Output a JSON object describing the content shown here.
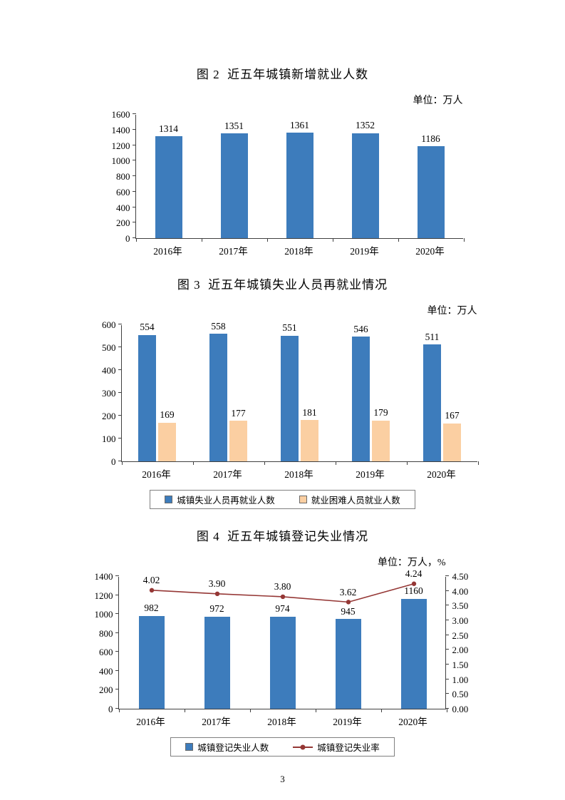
{
  "page": {
    "number": "3"
  },
  "chart_data": [
    {
      "type": "bar",
      "title": "图 2  近五年城镇新增就业人数",
      "unit_label": "单位：万人",
      "categories": [
        "2016年",
        "2017年",
        "2018年",
        "2019年",
        "2020年"
      ],
      "series": [
        {
          "kind": "bar",
          "values": [
            1314,
            1351,
            1361,
            1352,
            1186
          ],
          "color": "#3d7cbc"
        }
      ],
      "ylim": [
        0,
        1600
      ],
      "yticks": [
        "0",
        "200",
        "400",
        "600",
        "800",
        "1000",
        "1200",
        "1400",
        "1600"
      ],
      "legend_position": null
    },
    {
      "type": "bar",
      "title": "图 3  近五年城镇失业人员再就业情况",
      "unit_label": "单位：万人",
      "categories": [
        "2016年",
        "2017年",
        "2018年",
        "2019年",
        "2020年"
      ],
      "series": [
        {
          "kind": "bar",
          "name": "城镇失业人员再就业人数",
          "values": [
            554,
            558,
            551,
            546,
            511
          ],
          "color": "#3d7cbc"
        },
        {
          "kind": "bar",
          "name": "就业困难人员就业人数",
          "values": [
            169,
            177,
            181,
            179,
            167
          ],
          "color": "#fbcfa2"
        }
      ],
      "ylim": [
        0,
        600
      ],
      "yticks": [
        "0",
        "100",
        "200",
        "300",
        "400",
        "500",
        "600"
      ],
      "legend_position": "bottom"
    },
    {
      "type": "bar+line",
      "title": "图 4  近五年城镇登记失业情况",
      "unit_label": "单位：万人，%",
      "categories": [
        "2016年",
        "2017年",
        "2018年",
        "2019年",
        "2020年"
      ],
      "series": [
        {
          "kind": "bar",
          "name": "城镇登记失业人数",
          "values": [
            982,
            972,
            974,
            945,
            1160
          ],
          "color": "#3d7cbc"
        },
        {
          "kind": "line",
          "name": "城镇登记失业率",
          "values": [
            4.02,
            3.9,
            3.8,
            3.62,
            4.24
          ],
          "labels": [
            "4.02",
            "3.90",
            "3.80",
            "3.62",
            "4.24"
          ],
          "color": "#953735",
          "axis": "right"
        }
      ],
      "ylim": [
        0,
        1400
      ],
      "yticks": [
        "0",
        "200",
        "400",
        "600",
        "800",
        "1000",
        "1200",
        "1400"
      ],
      "y2lim": [
        0,
        4.5
      ],
      "y2ticks": [
        "0.00",
        "0.50",
        "1.00",
        "1.50",
        "2.00",
        "2.50",
        "3.00",
        "3.50",
        "4.00",
        "4.50"
      ],
      "legend_position": "bottom"
    }
  ]
}
